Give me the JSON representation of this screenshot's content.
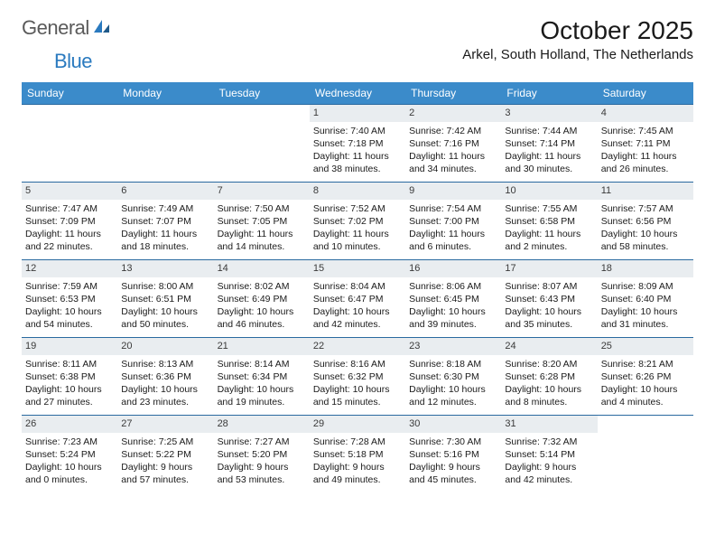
{
  "logo": {
    "word1": "General",
    "word2": "Blue"
  },
  "title": "October 2025",
  "location": "Arkel, South Holland, The Netherlands",
  "colors": {
    "header_bg": "#3b8bca",
    "header_text": "#ffffff",
    "daynum_bg": "#e9edf0",
    "border": "#2a6aa0",
    "logo_gray": "#5a5a5a",
    "logo_blue": "#2a7abf"
  },
  "weekdays": [
    "Sunday",
    "Monday",
    "Tuesday",
    "Wednesday",
    "Thursday",
    "Friday",
    "Saturday"
  ],
  "weeks": [
    [
      {
        "day": "",
        "sunrise": "",
        "sunset": "",
        "daylight1": "",
        "daylight2": ""
      },
      {
        "day": "",
        "sunrise": "",
        "sunset": "",
        "daylight1": "",
        "daylight2": ""
      },
      {
        "day": "",
        "sunrise": "",
        "sunset": "",
        "daylight1": "",
        "daylight2": ""
      },
      {
        "day": "1",
        "sunrise": "Sunrise: 7:40 AM",
        "sunset": "Sunset: 7:18 PM",
        "daylight1": "Daylight: 11 hours",
        "daylight2": "and 38 minutes."
      },
      {
        "day": "2",
        "sunrise": "Sunrise: 7:42 AM",
        "sunset": "Sunset: 7:16 PM",
        "daylight1": "Daylight: 11 hours",
        "daylight2": "and 34 minutes."
      },
      {
        "day": "3",
        "sunrise": "Sunrise: 7:44 AM",
        "sunset": "Sunset: 7:14 PM",
        "daylight1": "Daylight: 11 hours",
        "daylight2": "and 30 minutes."
      },
      {
        "day": "4",
        "sunrise": "Sunrise: 7:45 AM",
        "sunset": "Sunset: 7:11 PM",
        "daylight1": "Daylight: 11 hours",
        "daylight2": "and 26 minutes."
      }
    ],
    [
      {
        "day": "5",
        "sunrise": "Sunrise: 7:47 AM",
        "sunset": "Sunset: 7:09 PM",
        "daylight1": "Daylight: 11 hours",
        "daylight2": "and 22 minutes."
      },
      {
        "day": "6",
        "sunrise": "Sunrise: 7:49 AM",
        "sunset": "Sunset: 7:07 PM",
        "daylight1": "Daylight: 11 hours",
        "daylight2": "and 18 minutes."
      },
      {
        "day": "7",
        "sunrise": "Sunrise: 7:50 AM",
        "sunset": "Sunset: 7:05 PM",
        "daylight1": "Daylight: 11 hours",
        "daylight2": "and 14 minutes."
      },
      {
        "day": "8",
        "sunrise": "Sunrise: 7:52 AM",
        "sunset": "Sunset: 7:02 PM",
        "daylight1": "Daylight: 11 hours",
        "daylight2": "and 10 minutes."
      },
      {
        "day": "9",
        "sunrise": "Sunrise: 7:54 AM",
        "sunset": "Sunset: 7:00 PM",
        "daylight1": "Daylight: 11 hours",
        "daylight2": "and 6 minutes."
      },
      {
        "day": "10",
        "sunrise": "Sunrise: 7:55 AM",
        "sunset": "Sunset: 6:58 PM",
        "daylight1": "Daylight: 11 hours",
        "daylight2": "and 2 minutes."
      },
      {
        "day": "11",
        "sunrise": "Sunrise: 7:57 AM",
        "sunset": "Sunset: 6:56 PM",
        "daylight1": "Daylight: 10 hours",
        "daylight2": "and 58 minutes."
      }
    ],
    [
      {
        "day": "12",
        "sunrise": "Sunrise: 7:59 AM",
        "sunset": "Sunset: 6:53 PM",
        "daylight1": "Daylight: 10 hours",
        "daylight2": "and 54 minutes."
      },
      {
        "day": "13",
        "sunrise": "Sunrise: 8:00 AM",
        "sunset": "Sunset: 6:51 PM",
        "daylight1": "Daylight: 10 hours",
        "daylight2": "and 50 minutes."
      },
      {
        "day": "14",
        "sunrise": "Sunrise: 8:02 AM",
        "sunset": "Sunset: 6:49 PM",
        "daylight1": "Daylight: 10 hours",
        "daylight2": "and 46 minutes."
      },
      {
        "day": "15",
        "sunrise": "Sunrise: 8:04 AM",
        "sunset": "Sunset: 6:47 PM",
        "daylight1": "Daylight: 10 hours",
        "daylight2": "and 42 minutes."
      },
      {
        "day": "16",
        "sunrise": "Sunrise: 8:06 AM",
        "sunset": "Sunset: 6:45 PM",
        "daylight1": "Daylight: 10 hours",
        "daylight2": "and 39 minutes."
      },
      {
        "day": "17",
        "sunrise": "Sunrise: 8:07 AM",
        "sunset": "Sunset: 6:43 PM",
        "daylight1": "Daylight: 10 hours",
        "daylight2": "and 35 minutes."
      },
      {
        "day": "18",
        "sunrise": "Sunrise: 8:09 AM",
        "sunset": "Sunset: 6:40 PM",
        "daylight1": "Daylight: 10 hours",
        "daylight2": "and 31 minutes."
      }
    ],
    [
      {
        "day": "19",
        "sunrise": "Sunrise: 8:11 AM",
        "sunset": "Sunset: 6:38 PM",
        "daylight1": "Daylight: 10 hours",
        "daylight2": "and 27 minutes."
      },
      {
        "day": "20",
        "sunrise": "Sunrise: 8:13 AM",
        "sunset": "Sunset: 6:36 PM",
        "daylight1": "Daylight: 10 hours",
        "daylight2": "and 23 minutes."
      },
      {
        "day": "21",
        "sunrise": "Sunrise: 8:14 AM",
        "sunset": "Sunset: 6:34 PM",
        "daylight1": "Daylight: 10 hours",
        "daylight2": "and 19 minutes."
      },
      {
        "day": "22",
        "sunrise": "Sunrise: 8:16 AM",
        "sunset": "Sunset: 6:32 PM",
        "daylight1": "Daylight: 10 hours",
        "daylight2": "and 15 minutes."
      },
      {
        "day": "23",
        "sunrise": "Sunrise: 8:18 AM",
        "sunset": "Sunset: 6:30 PM",
        "daylight1": "Daylight: 10 hours",
        "daylight2": "and 12 minutes."
      },
      {
        "day": "24",
        "sunrise": "Sunrise: 8:20 AM",
        "sunset": "Sunset: 6:28 PM",
        "daylight1": "Daylight: 10 hours",
        "daylight2": "and 8 minutes."
      },
      {
        "day": "25",
        "sunrise": "Sunrise: 8:21 AM",
        "sunset": "Sunset: 6:26 PM",
        "daylight1": "Daylight: 10 hours",
        "daylight2": "and 4 minutes."
      }
    ],
    [
      {
        "day": "26",
        "sunrise": "Sunrise: 7:23 AM",
        "sunset": "Sunset: 5:24 PM",
        "daylight1": "Daylight: 10 hours",
        "daylight2": "and 0 minutes."
      },
      {
        "day": "27",
        "sunrise": "Sunrise: 7:25 AM",
        "sunset": "Sunset: 5:22 PM",
        "daylight1": "Daylight: 9 hours",
        "daylight2": "and 57 minutes."
      },
      {
        "day": "28",
        "sunrise": "Sunrise: 7:27 AM",
        "sunset": "Sunset: 5:20 PM",
        "daylight1": "Daylight: 9 hours",
        "daylight2": "and 53 minutes."
      },
      {
        "day": "29",
        "sunrise": "Sunrise: 7:28 AM",
        "sunset": "Sunset: 5:18 PM",
        "daylight1": "Daylight: 9 hours",
        "daylight2": "and 49 minutes."
      },
      {
        "day": "30",
        "sunrise": "Sunrise: 7:30 AM",
        "sunset": "Sunset: 5:16 PM",
        "daylight1": "Daylight: 9 hours",
        "daylight2": "and 45 minutes."
      },
      {
        "day": "31",
        "sunrise": "Sunrise: 7:32 AM",
        "sunset": "Sunset: 5:14 PM",
        "daylight1": "Daylight: 9 hours",
        "daylight2": "and 42 minutes."
      },
      {
        "day": "",
        "sunrise": "",
        "sunset": "",
        "daylight1": "",
        "daylight2": ""
      }
    ]
  ]
}
